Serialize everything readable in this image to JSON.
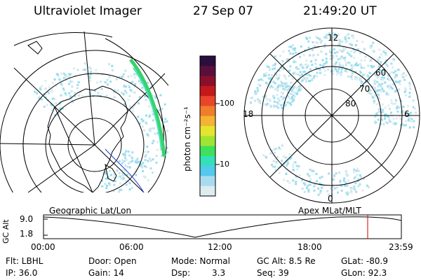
{
  "header": {
    "title": "Ultraviolet Imager",
    "date": "27 Sep 07",
    "time": "21:49:20 UT"
  },
  "left_panel": {
    "caption": "Geographic Lat/Lon"
  },
  "right_panel": {
    "caption": "Apex  MLat/MLT",
    "mlt_labels": {
      "top": "12",
      "left": "18",
      "right": "6",
      "bottom": "0"
    },
    "mlat_labels": [
      "60",
      "70",
      "80"
    ]
  },
  "colorbar": {
    "unit_label": "photon cm⁻²s⁻¹",
    "tick_labels": [
      "100",
      "10"
    ],
    "colors": [
      "#2a0e3e",
      "#5a0f3a",
      "#8a0f2c",
      "#c21a1a",
      "#e8452a",
      "#f07d2b",
      "#f3b431",
      "#e5e42f",
      "#9fe433",
      "#3fe05c",
      "#35dfb8",
      "#53c9ee",
      "#a7dcee",
      "#dcecef"
    ]
  },
  "altitude_plot": {
    "y_label": "GC Alt",
    "y_ticks": [
      "9.0",
      "1.8"
    ],
    "x_ticks": [
      "00:00",
      "06:00",
      "12:00",
      "18:00",
      "23:59"
    ],
    "marker_color": "#cc0000"
  },
  "status": {
    "flt": "Flt: LBHL",
    "ip": "IP: 36.0",
    "door": "Door: Open",
    "gain": "Gain: 14",
    "mode": "Mode: Normal",
    "dsp_label": "Dsp:",
    "dsp_value": "3.3",
    "gc_alt": "GC Alt: 8.5 Re",
    "seq": "Seq: 39",
    "glat": "GLat:  -80.9",
    "glon": "GLon:  92.3"
  }
}
